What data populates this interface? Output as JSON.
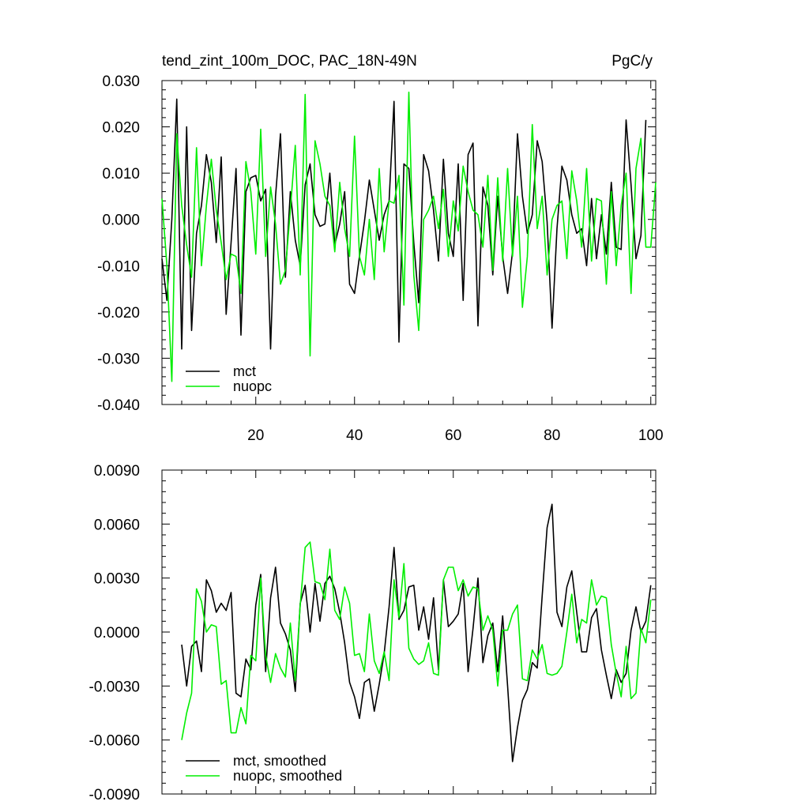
{
  "figure": {
    "colors": {
      "mct": "#000000",
      "nuopc": "#00ee00"
    }
  },
  "chart_data": [
    {
      "type": "line",
      "title": "tend_zint_100m_DOC, PAC_18N-49N",
      "units": "PgC/y",
      "xlabel": "",
      "ylabel": "",
      "xlim": [
        1,
        101
      ],
      "ylim": [
        -0.04,
        0.03
      ],
      "x_ticks": [
        20,
        40,
        60,
        80,
        100
      ],
      "x_tick_labels_shown": true,
      "y_ticks": [
        -0.04,
        -0.03,
        -0.02,
        -0.01,
        0.0,
        0.01,
        0.02,
        0.03
      ],
      "y_tick_labels": [
        "-0.040",
        "-0.030",
        "-0.020",
        "-0.010",
        "0.000",
        "0.010",
        "0.020",
        "0.030"
      ],
      "grid": false,
      "legend_position": "bottom-left",
      "series": [
        {
          "name": "mct",
          "color": "#000000",
          "x_start": 1,
          "values": [
            -0.0085,
            -0.0175,
            0.0,
            0.026,
            -0.028,
            0.02,
            -0.024,
            -0.003,
            0.003,
            0.014,
            0.008,
            -0.005,
            0.0135,
            -0.0205,
            -0.005,
            0.011,
            -0.025,
            0.006,
            0.009,
            0.0095,
            0.004,
            0.0065,
            -0.028,
            0.005,
            0.0185,
            -0.0125,
            0.006,
            -0.0045,
            -0.01,
            0.0075,
            0.012,
            0.001,
            -0.0015,
            -0.001,
            0.01,
            -0.0055,
            -0.001,
            0.006,
            -0.014,
            -0.016,
            -0.008,
            -0.0005,
            0.0085,
            0.002,
            -0.0045,
            0.001,
            0.004,
            0.0255,
            -0.0265,
            0.012,
            0.011,
            -0.005,
            -0.018,
            0.014,
            0.0105,
            0.002,
            -0.009,
            0.013,
            -0.003,
            -0.008,
            0.012,
            -0.0175,
            0.014,
            0.0165,
            -0.023,
            0.007,
            0.003,
            -0.012,
            0.005,
            -0.008,
            -0.016,
            -0.007,
            0.0185,
            0.005,
            -0.003,
            0.001,
            0.017,
            0.0125,
            -0.0005,
            -0.0235,
            -0.002,
            0.0115,
            0.0085,
            0.001,
            -0.003,
            -0.002,
            -0.01,
            0.0045,
            -0.0085,
            0.001,
            -0.0075,
            0.008,
            -0.006,
            -0.0065,
            0.0215,
            0.0075,
            -0.0085,
            -0.0035,
            0.0215
          ]
        },
        {
          "name": "nuopc",
          "color": "#00ee00",
          "x_start": 1,
          "values": [
            0.0045,
            -0.01,
            -0.035,
            0.0185,
            0.003,
            -0.0055,
            -0.0125,
            0.0155,
            -0.01,
            0.003,
            0.013,
            0.002,
            -0.005,
            -0.013,
            -0.0075,
            -0.008,
            -0.016,
            0.0125,
            0.006,
            -0.0075,
            0.0195,
            -0.008,
            0.007,
            -0.001,
            -0.014,
            -0.011,
            0.002,
            0.016,
            -0.012,
            0.027,
            -0.0295,
            0.017,
            0.012,
            0.005,
            0.003,
            -0.007,
            0.008,
            -0.002,
            -0.008,
            0.018,
            -0.008,
            -0.012,
            0.0,
            -0.013,
            0.011,
            -0.007,
            0.004,
            0.0035,
            0.0095,
            -0.0185,
            0.0275,
            -0.012,
            -0.024,
            0.0,
            0.002,
            0.005,
            -0.002,
            0.0065,
            -0.008,
            0.004,
            -0.0025,
            0.0115,
            0.006,
            0.002,
            0.001,
            -0.006,
            0.0095,
            -0.011,
            0.009,
            -0.009,
            0.011,
            -0.008,
            0.005,
            -0.019,
            -0.008,
            0.0205,
            -0.002,
            0.005,
            -0.012,
            0.0,
            0.003,
            0.004,
            -0.0085,
            0.0105,
            0.004,
            -0.006,
            0.011,
            -0.009,
            0.0045,
            0.004,
            -0.014,
            0.006,
            -0.01,
            0.003,
            0.01,
            -0.016,
            0.011,
            0.0175,
            -0.006,
            -0.006,
            0.008
          ]
        }
      ]
    },
    {
      "type": "line",
      "title": "",
      "xlabel": "",
      "ylabel": "",
      "xlim": [
        1,
        101
      ],
      "ylim": [
        -0.009,
        0.009
      ],
      "x_ticks": [
        20,
        40,
        60,
        80,
        100
      ],
      "x_tick_labels_shown": false,
      "y_ticks": [
        -0.009,
        -0.006,
        -0.003,
        0.0,
        0.003,
        0.006,
        0.009
      ],
      "y_tick_labels": [
        "-0.0090",
        "-0.0060",
        "-0.0030",
        "0.0000",
        "0.0030",
        "0.0060",
        "0.0090"
      ],
      "grid": false,
      "legend_position": "bottom-left",
      "series": [
        {
          "name": "mct, smoothed",
          "color": "#000000",
          "x_start": 5,
          "values": [
            -0.0007,
            -0.003,
            -0.0008,
            -0.0005,
            -0.0022,
            0.0029,
            0.0023,
            0.0011,
            0.0016,
            0.0012,
            0.0022,
            -0.0034,
            -0.0036,
            -0.0015,
            -0.0021,
            0.0015,
            0.0032,
            -0.0022,
            0.0019,
            0.0036,
            0.0005,
            -0.0001,
            -0.001,
            -0.0033,
            0.0016,
            0.0026,
            0.0,
            0.0027,
            0.0006,
            0.0027,
            0.0031,
            0.0024,
            0.0011,
            -0.0006,
            -0.0028,
            -0.0036,
            -0.0048,
            -0.0028,
            -0.0026,
            -0.0044,
            -0.0029,
            -0.0012,
            0.0014,
            0.0047,
            0.0007,
            0.0012,
            0.0025,
            0.0026,
            0.0001,
            0.0014,
            -0.0004,
            0.0019,
            -0.0021,
            0.0029,
            0.0003,
            0.0006,
            0.001,
            0.0027,
            -0.0022,
            0.0002,
            0.003,
            -0.0017,
            -0.0002,
            0.0005,
            -0.0022,
            0.0009,
            -0.003,
            -0.0072,
            -0.0053,
            -0.0038,
            -0.0032,
            -0.0017,
            -0.002,
            0.002,
            0.0058,
            0.0071,
            0.0011,
            0.0003,
            0.0025,
            0.0034,
            0.0011,
            -0.0011,
            -0.0011,
            0.0008,
            0.0013,
            -0.001,
            -0.0024,
            -0.0037,
            -0.0021,
            -0.0028,
            -0.0023,
            0.0001,
            0.0014,
            0.0,
            0.0006,
            0.0026
          ]
        },
        {
          "name": "nuopc, smoothed",
          "color": "#00ee00",
          "x_start": 5,
          "values": [
            -0.006,
            -0.0045,
            -0.0034,
            0.0024,
            0.0017,
            0.0,
            0.0004,
            0.0003,
            -0.0029,
            -0.0027,
            -0.0056,
            -0.0056,
            -0.0042,
            -0.0051,
            -0.0013,
            -0.0016,
            0.003,
            -0.0013,
            -0.0028,
            -0.0012,
            -0.002,
            -0.0025,
            0.0005,
            -0.0027,
            0.0015,
            0.0047,
            0.005,
            0.0028,
            0.0027,
            0.0018,
            0.0046,
            0.0012,
            0.0007,
            0.0025,
            0.0016,
            -0.0013,
            -0.0012,
            -0.0022,
            0.001,
            -0.0016,
            -0.0023,
            -0.0011,
            -0.0027,
            0.0029,
            0.0008,
            0.0038,
            -0.0009,
            -0.0015,
            -0.0018,
            -0.0016,
            -0.0006,
            -0.0023,
            -0.0024,
            0.0029,
            0.0036,
            0.0036,
            0.0023,
            0.0029,
            0.002,
            0.0025,
            0.0024,
            0.0001,
            0.0009,
            0.0001,
            -0.003,
            0.0001,
            0.0001,
            0.001,
            0.0015,
            -0.0026,
            -0.0027,
            -0.001,
            -0.0015,
            -0.0007,
            -0.0023,
            -0.0024,
            -0.0023,
            -0.0019,
            0.0,
            0.0021,
            -0.0006,
            0.0007,
            0.0005,
            0.0029,
            0.0015,
            0.002,
            0.0019,
            -0.0007,
            -0.0023,
            -0.0036,
            -0.0008,
            -0.0037,
            -0.0034,
            0.0002,
            -0.0006,
            0.0018
          ]
        }
      ]
    }
  ]
}
